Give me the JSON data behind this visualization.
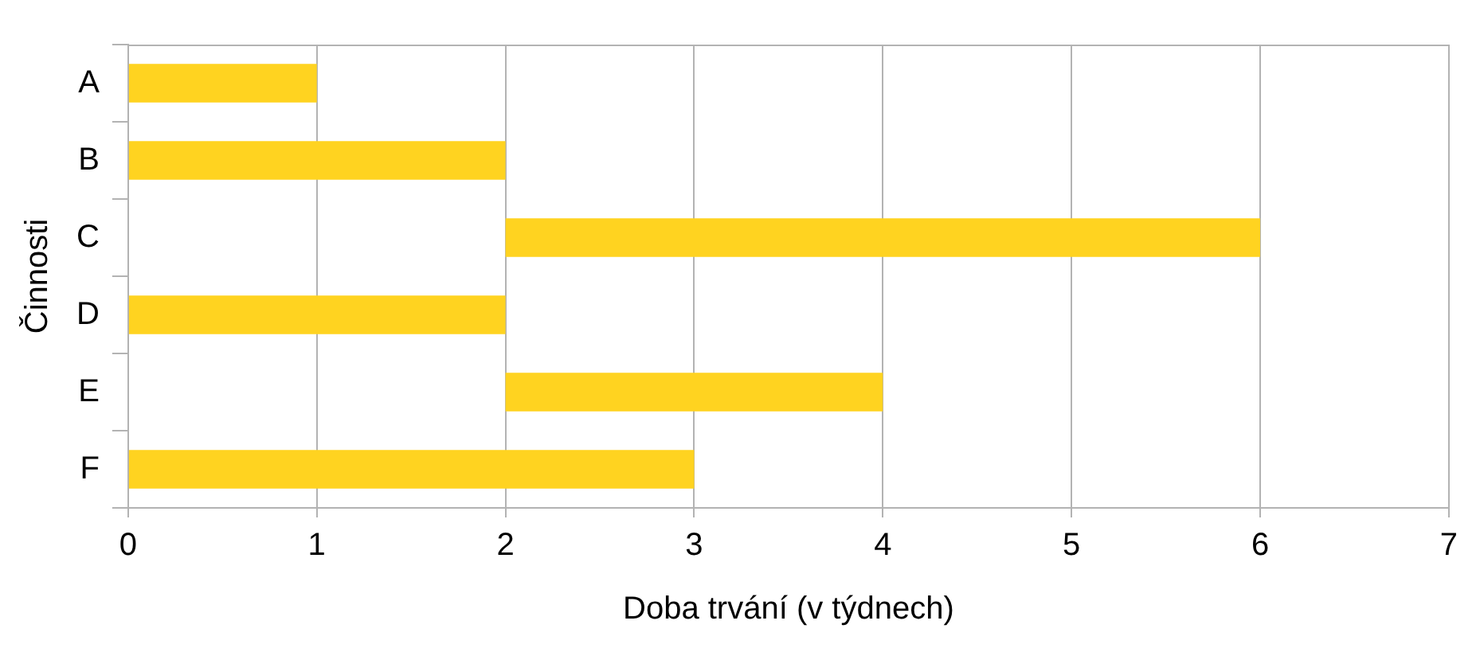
{
  "chart_data": {
    "type": "bar",
    "orientation": "horizontal",
    "xlabel": "Doba trvání (v týdnech)",
    "ylabel": "Činnosti",
    "categories": [
      "A",
      "B",
      "C",
      "D",
      "E",
      "F"
    ],
    "values": [
      1,
      2,
      4,
      2,
      2,
      3
    ],
    "base": [
      0,
      0,
      2,
      0,
      2,
      0
    ],
    "color": "#ffd320",
    "xlim": [
      0,
      7
    ],
    "xticks": [
      0,
      1,
      2,
      3,
      4,
      5,
      6,
      7
    ],
    "grid": "x",
    "legend": false
  }
}
